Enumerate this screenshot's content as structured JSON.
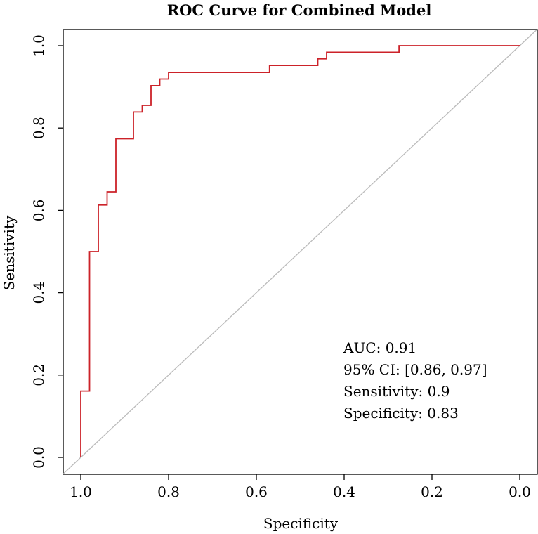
{
  "chart_data": {
    "type": "line",
    "title": "ROC Curve for Combined Model",
    "xlabel": "Specificity",
    "ylabel": "Sensitivity",
    "xlim": [
      1.0,
      0.0
    ],
    "ylim": [
      0.0,
      1.0
    ],
    "x_ticks": [
      1.0,
      0.8,
      0.6,
      0.4,
      0.2,
      0.0
    ],
    "x_tick_labels": [
      "1.0",
      "0.8",
      "0.6",
      "0.4",
      "0.2",
      "0.0"
    ],
    "y_ticks": [
      0.0,
      0.2,
      0.4,
      0.6,
      0.8,
      1.0
    ],
    "y_tick_labels": [
      "0.0",
      "0.2",
      "0.4",
      "0.6",
      "0.8",
      "1.0"
    ],
    "grid": false,
    "series": [
      {
        "name": "ROC curve",
        "color": "#cc2229",
        "specificity": [
          1.0,
          1.0,
          0.98,
          0.98,
          0.96,
          0.96,
          0.94,
          0.94,
          0.92,
          0.92,
          0.88,
          0.88,
          0.86,
          0.86,
          0.84,
          0.84,
          0.82,
          0.82,
          0.8,
          0.8,
          0.57,
          0.57,
          0.46,
          0.46,
          0.44,
          0.44,
          0.275,
          0.275,
          0.0
        ],
        "sensitivity": [
          0.0,
          0.161,
          0.161,
          0.5,
          0.5,
          0.613,
          0.613,
          0.645,
          0.645,
          0.774,
          0.774,
          0.839,
          0.839,
          0.855,
          0.855,
          0.903,
          0.903,
          0.919,
          0.919,
          0.935,
          0.935,
          0.952,
          0.952,
          0.968,
          0.968,
          0.984,
          0.984,
          1.0,
          1.0
        ]
      },
      {
        "name": "Reference line",
        "color": "#bbbbbb",
        "specificity": [
          1.04,
          -0.04
        ],
        "sensitivity": [
          -0.04,
          1.04
        ]
      }
    ],
    "annotations": [
      "AUC: 0.91",
      "95% CI: [0.86, 0.97]",
      "Sensitivity: 0.9",
      "Specificity: 0.83"
    ]
  }
}
